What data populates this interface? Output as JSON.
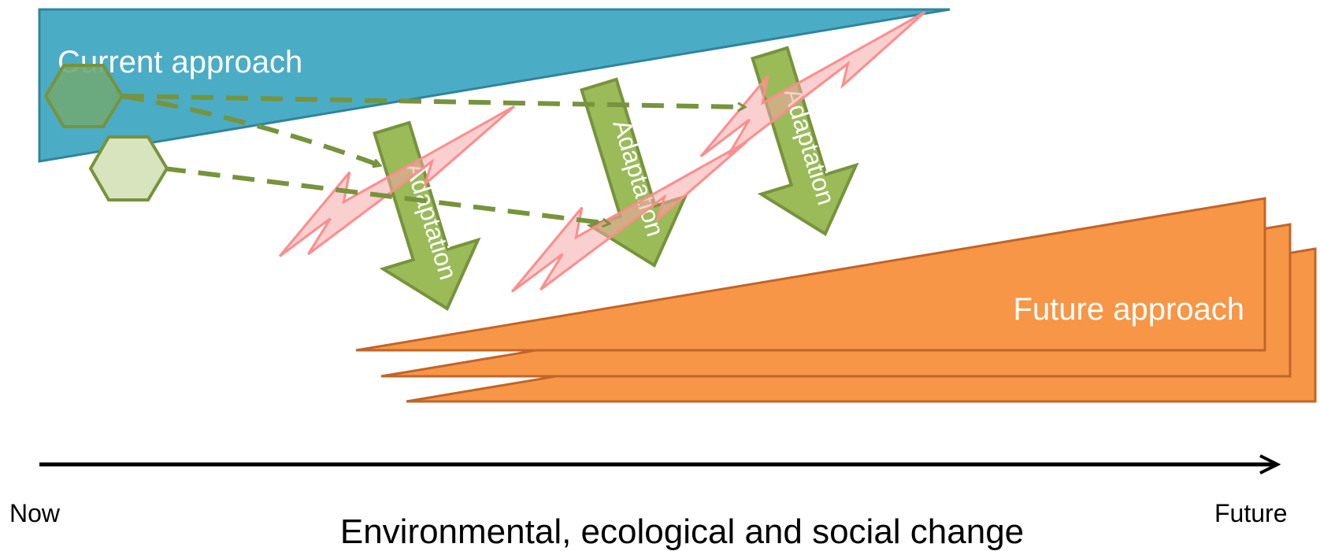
{
  "current_approach": {
    "label": "Current approach",
    "color": "#4bacc6"
  },
  "future_approach": {
    "label": "Future approach",
    "color": "#f79646"
  },
  "adaptation": {
    "label": "Adaptation",
    "color": "#9bbb59"
  },
  "axis": {
    "start_label": "Now",
    "end_label": "Future",
    "caption": "Environmental, ecological and social change"
  },
  "icons": [
    "hexagon-icon",
    "lightning-bolt-icon",
    "adaptation-arrow-icon",
    "dashed-arrow-icon"
  ]
}
